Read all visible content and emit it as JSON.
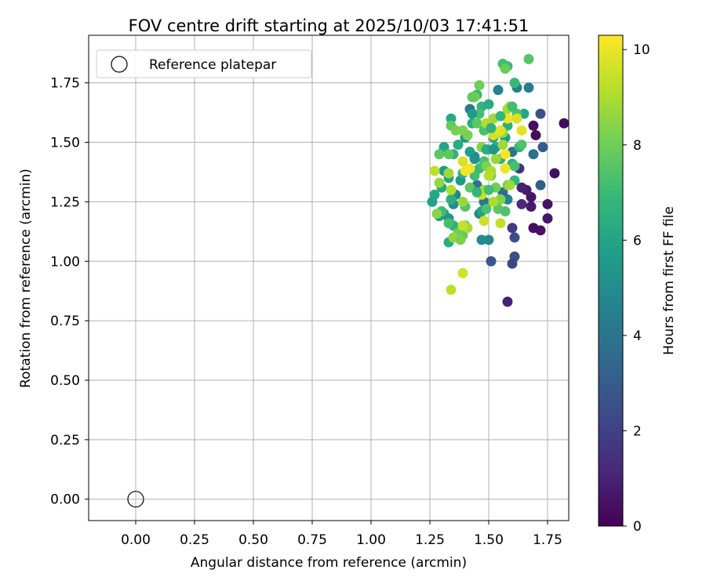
{
  "chart_data": {
    "type": "scatter",
    "title": "FOV centre drift starting at 2025/10/03 17:41:51",
    "xlabel": "Angular distance from reference (arcmin)",
    "ylabel": "Rotation from reference (arcmin)",
    "xlim": [
      -0.2,
      1.84
    ],
    "ylim": [
      -0.09,
      1.95
    ],
    "x_ticks": [
      0.0,
      0.25,
      0.5,
      0.75,
      1.0,
      1.25,
      1.5,
      1.75
    ],
    "x_tick_labels": [
      "0.00",
      "0.25",
      "0.50",
      "0.75",
      "1.00",
      "1.25",
      "1.50",
      "1.75"
    ],
    "y_ticks": [
      0.0,
      0.25,
      0.5,
      0.75,
      1.0,
      1.25,
      1.5,
      1.75
    ],
    "y_tick_labels": [
      "0.00",
      "0.25",
      "0.50",
      "0.75",
      "1.00",
      "1.25",
      "1.50",
      "1.75"
    ],
    "grid": true,
    "legend": {
      "placement": "top-left",
      "entries": [
        "Reference platepar"
      ]
    },
    "reference_point": {
      "x": 0.0,
      "y": 0.0,
      "label": "Reference platepar"
    },
    "colorbar": {
      "label": "Hours from first FF file",
      "colormap": "viridis",
      "range": [
        0,
        10.3
      ],
      "ticks": [
        0,
        2,
        4,
        6,
        8,
        10
      ],
      "tick_labels": [
        "0",
        "2",
        "4",
        "6",
        "8",
        "10"
      ]
    },
    "points": [
      [
        1.82,
        1.58,
        0.3
      ],
      [
        1.69,
        1.57,
        0.4
      ],
      [
        1.7,
        1.53,
        0.3
      ],
      [
        1.78,
        1.37,
        0.4
      ],
      [
        1.75,
        1.24,
        0.5
      ],
      [
        1.75,
        1.18,
        0.6
      ],
      [
        1.72,
        1.13,
        0.5
      ],
      [
        1.69,
        1.14,
        0.4
      ],
      [
        1.68,
        1.23,
        0.7
      ],
      [
        1.68,
        1.27,
        0.6
      ],
      [
        1.66,
        1.3,
        0.8
      ],
      [
        1.64,
        1.31,
        1.0
      ],
      [
        1.64,
        1.24,
        1.2
      ],
      [
        1.63,
        1.39,
        1.5
      ],
      [
        1.6,
        1.14,
        1.8
      ],
      [
        1.61,
        1.1,
        2.4
      ],
      [
        1.61,
        1.02,
        2.6
      ],
      [
        1.6,
        0.99,
        2.2
      ],
      [
        1.58,
        0.83,
        0.9
      ],
      [
        1.51,
        1.0,
        2.8
      ],
      [
        1.72,
        1.62,
        2.5
      ],
      [
        1.73,
        1.48,
        3.0
      ],
      [
        1.72,
        1.32,
        3.0
      ],
      [
        1.69,
        1.45,
        3.8
      ],
      [
        1.67,
        1.73,
        4.3
      ],
      [
        1.62,
        1.73,
        4.5
      ],
      [
        1.54,
        1.72,
        4.5
      ],
      [
        1.6,
        1.46,
        4.0
      ],
      [
        1.58,
        1.26,
        4.5
      ],
      [
        1.56,
        1.29,
        3.6
      ],
      [
        1.5,
        1.09,
        4.8
      ],
      [
        1.47,
        1.09,
        5.0
      ],
      [
        1.46,
        1.2,
        4.6
      ],
      [
        1.48,
        1.25,
        4.2
      ],
      [
        1.45,
        1.32,
        3.9
      ],
      [
        1.44,
        1.44,
        4.9
      ],
      [
        1.41,
        1.53,
        3.8
      ],
      [
        1.42,
        1.64,
        4.2
      ],
      [
        1.4,
        1.52,
        5.5
      ],
      [
        1.38,
        1.34,
        5.5
      ],
      [
        1.36,
        1.28,
        4.8
      ],
      [
        1.35,
        1.24,
        4.9
      ],
      [
        1.33,
        1.18,
        5.2
      ],
      [
        1.31,
        1.2,
        5.5
      ],
      [
        1.29,
        1.19,
        5.8
      ],
      [
        1.26,
        1.25,
        5.9
      ],
      [
        1.27,
        1.28,
        6.2
      ],
      [
        1.3,
        1.31,
        6.1
      ],
      [
        1.31,
        1.38,
        5.7
      ],
      [
        1.33,
        1.35,
        6.0
      ],
      [
        1.34,
        1.26,
        6.4
      ],
      [
        1.35,
        1.15,
        6.5
      ],
      [
        1.33,
        1.08,
        6.4
      ],
      [
        1.37,
        1.49,
        6.3
      ],
      [
        1.34,
        1.6,
        6.2
      ],
      [
        1.31,
        1.48,
        6.0
      ],
      [
        1.35,
        1.45,
        6.7
      ],
      [
        1.39,
        1.37,
        6.6
      ],
      [
        1.42,
        1.46,
        5.8
      ],
      [
        1.43,
        1.58,
        6.3
      ],
      [
        1.45,
        1.7,
        6.9
      ],
      [
        1.47,
        1.65,
        6.7
      ],
      [
        1.5,
        1.66,
        6.3
      ],
      [
        1.52,
        1.52,
        5.9
      ],
      [
        1.53,
        1.48,
        6.5
      ],
      [
        1.55,
        1.43,
        6.6
      ],
      [
        1.57,
        1.52,
        5.6
      ],
      [
        1.58,
        1.57,
        6.4
      ],
      [
        1.6,
        1.41,
        6.6
      ],
      [
        1.61,
        1.34,
        6.8
      ],
      [
        1.63,
        1.48,
        6.6
      ],
      [
        1.65,
        1.62,
        6.0
      ],
      [
        1.61,
        1.75,
        6.9
      ],
      [
        1.58,
        1.82,
        7.0
      ],
      [
        1.56,
        1.83,
        7.2
      ],
      [
        1.67,
        1.85,
        7.5
      ],
      [
        1.57,
        1.81,
        7.9
      ],
      [
        1.46,
        1.74,
        8.0
      ],
      [
        1.44,
        1.69,
        8.1
      ],
      [
        1.43,
        1.69,
        7.8
      ],
      [
        1.46,
        1.62,
        7.2
      ],
      [
        1.45,
        1.58,
        7.6
      ],
      [
        1.48,
        1.55,
        7.3
      ],
      [
        1.5,
        1.47,
        7.5
      ],
      [
        1.48,
        1.42,
        7.3
      ],
      [
        1.46,
        1.39,
        7.0
      ],
      [
        1.44,
        1.36,
        7.1
      ],
      [
        1.42,
        1.31,
        7.6
      ],
      [
        1.4,
        1.23,
        7.4
      ],
      [
        1.4,
        1.15,
        7.5
      ],
      [
        1.39,
        1.11,
        7.7
      ],
      [
        1.37,
        1.12,
        8.0
      ],
      [
        1.33,
        1.16,
        7.2
      ],
      [
        1.3,
        1.21,
        7.0
      ],
      [
        1.29,
        1.45,
        7.6
      ],
      [
        1.33,
        1.45,
        7.7
      ],
      [
        1.34,
        1.57,
        7.8
      ],
      [
        1.36,
        1.55,
        8.1
      ],
      [
        1.39,
        1.55,
        8.3
      ],
      [
        1.41,
        1.53,
        8.2
      ],
      [
        1.47,
        1.48,
        8.4
      ],
      [
        1.49,
        1.4,
        8.2
      ],
      [
        1.51,
        1.36,
        8.1
      ],
      [
        1.53,
        1.31,
        8.0
      ],
      [
        1.55,
        1.26,
        8.3
      ],
      [
        1.54,
        1.22,
        7.6
      ],
      [
        1.57,
        1.21,
        7.4
      ],
      [
        1.58,
        1.32,
        8.2
      ],
      [
        1.61,
        1.4,
        7.2
      ],
      [
        1.64,
        1.49,
        7.4
      ],
      [
        1.62,
        1.62,
        7.3
      ],
      [
        1.59,
        1.65,
        8.5
      ],
      [
        1.56,
        1.54,
        8.6
      ],
      [
        1.52,
        1.6,
        8.8
      ],
      [
        1.49,
        1.58,
        9.1
      ],
      [
        1.54,
        1.54,
        9.3
      ],
      [
        1.52,
        1.53,
        9.6
      ],
      [
        1.55,
        1.55,
        9.8
      ],
      [
        1.58,
        1.6,
        10.1
      ],
      [
        1.62,
        1.6,
        9.7
      ],
      [
        1.64,
        1.55,
        9.9
      ],
      [
        1.57,
        1.45,
        10.2
      ],
      [
        1.57,
        1.39,
        10.0
      ],
      [
        1.51,
        1.38,
        9.0
      ],
      [
        1.5,
        1.36,
        9.2
      ],
      [
        1.48,
        1.3,
        8.9
      ],
      [
        1.47,
        1.28,
        9.5
      ],
      [
        1.42,
        1.39,
        10.1
      ],
      [
        1.4,
        1.38,
        10.2
      ],
      [
        1.39,
        1.42,
        9.7
      ],
      [
        1.39,
        1.25,
        8.7
      ],
      [
        1.41,
        1.14,
        8.9
      ],
      [
        1.39,
        1.15,
        9.4
      ],
      [
        1.34,
        1.3,
        9.1
      ],
      [
        1.27,
        1.38,
        9.3
      ],
      [
        1.33,
        1.37,
        8.8
      ],
      [
        1.29,
        1.33,
        8.6
      ],
      [
        1.28,
        1.2,
        8.4
      ],
      [
        1.35,
        1.1,
        8.6
      ],
      [
        1.38,
        1.09,
        8.2
      ],
      [
        1.34,
        0.88,
        9.3
      ],
      [
        1.39,
        0.95,
        9.6
      ],
      [
        1.48,
        1.17,
        9.5
      ],
      [
        1.55,
        1.16,
        9.4
      ],
      [
        1.52,
        1.25,
        9.0
      ],
      [
        1.59,
        1.32,
        8.8
      ],
      [
        1.53,
        1.43,
        8.7
      ],
      [
        1.56,
        1.49,
        8.8
      ],
      [
        1.58,
        1.64,
        8.9
      ],
      [
        1.6,
        1.65,
        7.1
      ],
      [
        1.55,
        1.61,
        6.8
      ],
      [
        1.51,
        1.56,
        6.6
      ],
      [
        1.49,
        1.47,
        6.4
      ],
      [
        1.52,
        1.47,
        5.4
      ],
      [
        1.44,
        1.43,
        5.2
      ],
      [
        1.45,
        1.29,
        6.8
      ],
      [
        1.5,
        1.3,
        7.1
      ],
      [
        1.47,
        1.21,
        6.0
      ],
      [
        1.49,
        1.22,
        7.3
      ],
      [
        1.43,
        1.62,
        5.6
      ]
    ]
  }
}
